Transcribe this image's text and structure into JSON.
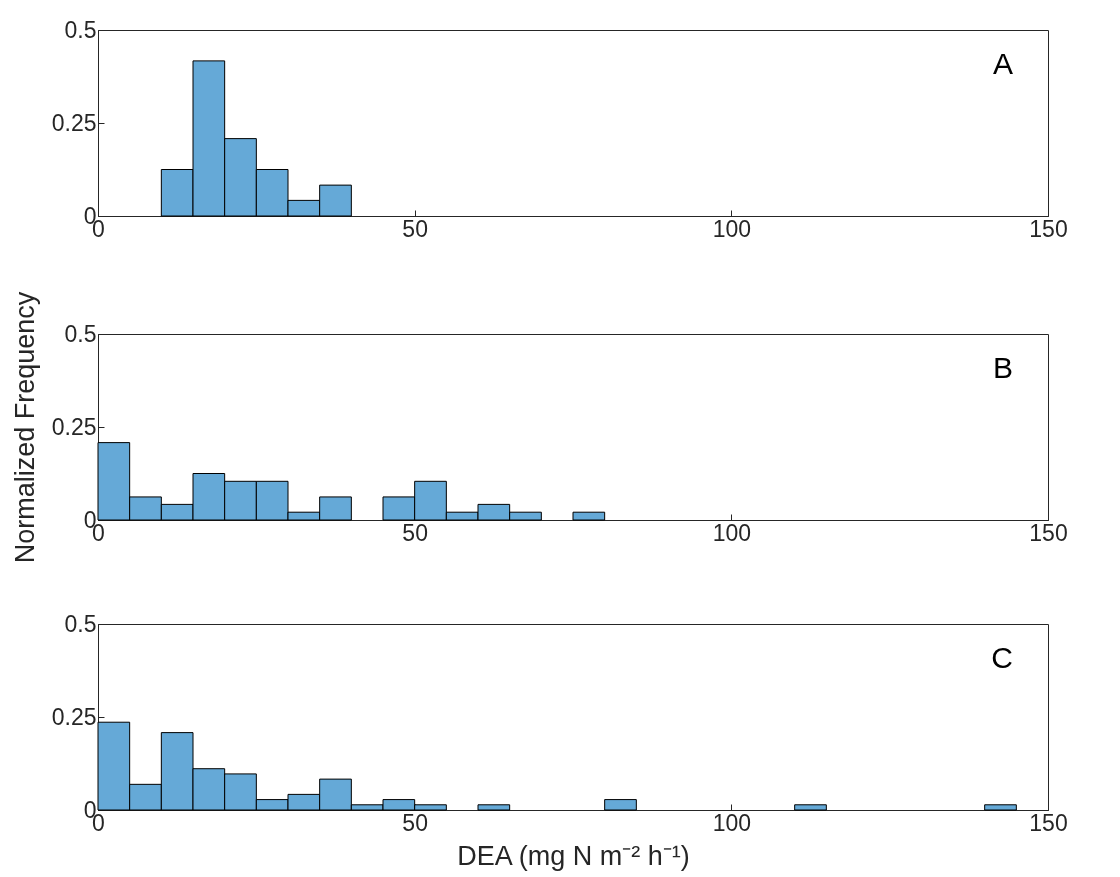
{
  "chart_data": [
    {
      "type": "histogram",
      "bins": [
        10,
        15,
        20,
        25,
        30,
        35,
        40
      ],
      "values": [
        0.125,
        0.417,
        0.208,
        0.125,
        0.042,
        0.083
      ],
      "color": "#65a9d7",
      "xlim": [
        0,
        150
      ],
      "xticks": [
        0,
        50,
        100,
        150
      ],
      "ylim": [
        0,
        0.5
      ],
      "yticks": [
        0,
        0.25,
        0.5
      ],
      "annotations": [
        "A"
      ]
    },
    {
      "type": "histogram",
      "bins": [
        0,
        5,
        10,
        15,
        20,
        25,
        30,
        35,
        40,
        45,
        50,
        55,
        60,
        65,
        70,
        75,
        80
      ],
      "values": [
        0.208,
        0.062,
        0.042,
        0.125,
        0.104,
        0.104,
        0.021,
        0.062,
        0,
        0.062,
        0.104,
        0.021,
        0.042,
        0.021,
        0,
        0.021
      ],
      "color": "#65a9d7",
      "xlim": [
        0,
        150
      ],
      "xticks": [
        0,
        50,
        100,
        150
      ],
      "ylim": [
        0,
        0.5
      ],
      "yticks": [
        0,
        0.25,
        0.5
      ],
      "ylabel": "Normalized Frequency",
      "annotations": [
        "B"
      ]
    },
    {
      "type": "histogram",
      "bins": [
        0,
        5,
        10,
        15,
        20,
        25,
        30,
        35,
        40,
        45,
        50,
        55,
        60,
        65,
        70,
        75,
        80,
        85,
        90,
        95,
        100,
        105,
        110,
        115,
        120,
        125,
        130,
        135,
        140,
        145
      ],
      "values": [
        0.236,
        0.069,
        0.208,
        0.111,
        0.097,
        0.028,
        0.042,
        0.083,
        0.014,
        0.028,
        0.014,
        0,
        0.014,
        0,
        0,
        0,
        0.028,
        0,
        0,
        0,
        0,
        0,
        0.014,
        0,
        0,
        0,
        0,
        0,
        0.014
      ],
      "color": "#65a9d7",
      "xlim": [
        0,
        150
      ],
      "xticks": [
        0,
        50,
        100,
        150
      ],
      "ylim": [
        0,
        0.5
      ],
      "yticks": [
        0,
        0.25,
        0.5
      ],
      "xlabel": "DEA (mg N m⁻² h⁻¹)",
      "annotations": [
        "C"
      ]
    }
  ]
}
